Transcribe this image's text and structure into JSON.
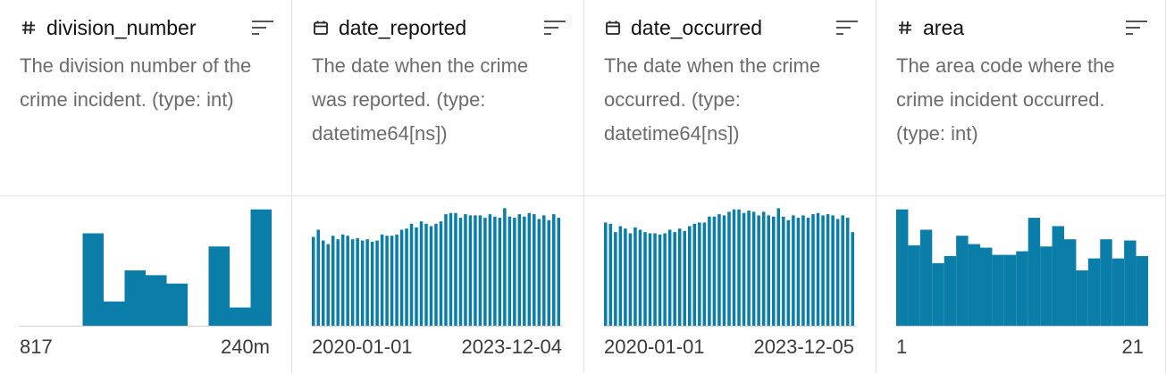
{
  "bar_color": "#0a7ea8",
  "columns": [
    {
      "name": "division_number",
      "type_icon": "hash-icon",
      "description": "The division number of the crime incident. (type: int)",
      "range_min": "817",
      "range_max": "240m",
      "histogram": [
        0,
        0,
        0,
        0.78,
        0.21,
        0.47,
        0.43,
        0.36,
        0,
        0.67,
        0.16,
        0.98
      ]
    },
    {
      "name": "date_reported",
      "type_icon": "calendar-icon",
      "description": "The date when the crime was reported. (type: datetime64[ns])",
      "range_min": "2020-01-01",
      "range_max": "2023-12-04",
      "histogram": [
        0.75,
        0.81,
        0.72,
        0.69,
        0.76,
        0.73,
        0.77,
        0.76,
        0.73,
        0.74,
        0.72,
        0.73,
        0.71,
        0.72,
        0.77,
        0.76,
        0.76,
        0.77,
        0.81,
        0.82,
        0.86,
        0.83,
        0.88,
        0.86,
        0.84,
        0.86,
        0.88,
        0.94,
        0.95,
        0.95,
        0.91,
        0.94,
        0.93,
        0.93,
        0.93,
        0.91,
        0.94,
        0.92,
        0.91,
        0.99,
        0.92,
        0.91,
        0.94,
        0.92,
        0.95,
        0.94,
        0.9,
        0.93,
        0.89,
        0.94,
        0.91
      ]
    },
    {
      "name": "date_occurred",
      "type_icon": "calendar-icon",
      "description": "The date when the crime occurred. (type: datetime64[ns])",
      "range_min": "2020-01-01",
      "range_max": "2023-12-05",
      "histogram": [
        0.87,
        0.86,
        0.79,
        0.84,
        0.82,
        0.78,
        0.83,
        0.81,
        0.79,
        0.78,
        0.78,
        0.77,
        0.78,
        0.81,
        0.79,
        0.82,
        0.8,
        0.84,
        0.86,
        0.87,
        0.87,
        0.92,
        0.92,
        0.94,
        0.93,
        0.96,
        0.98,
        0.98,
        0.95,
        0.97,
        0.96,
        0.93,
        0.96,
        0.93,
        0.92,
        0.99,
        0.92,
        0.89,
        0.93,
        0.91,
        0.93,
        0.91,
        0.94,
        0.95,
        0.93,
        0.94,
        0.93,
        0.9,
        0.93,
        0.91,
        0.79
      ]
    },
    {
      "name": "area",
      "type_icon": "hash-icon",
      "description": "The area code where the crime incident occurred. (type: int)",
      "range_min": "1",
      "range_max": "21",
      "histogram": [
        0.98,
        0.68,
        0.81,
        0.53,
        0.59,
        0.76,
        0.69,
        0.66,
        0.6,
        0.6,
        0.63,
        0.91,
        0.67,
        0.84,
        0.73,
        0.47,
        0.57,
        0.73,
        0.57,
        0.72,
        0.59
      ]
    }
  ]
}
